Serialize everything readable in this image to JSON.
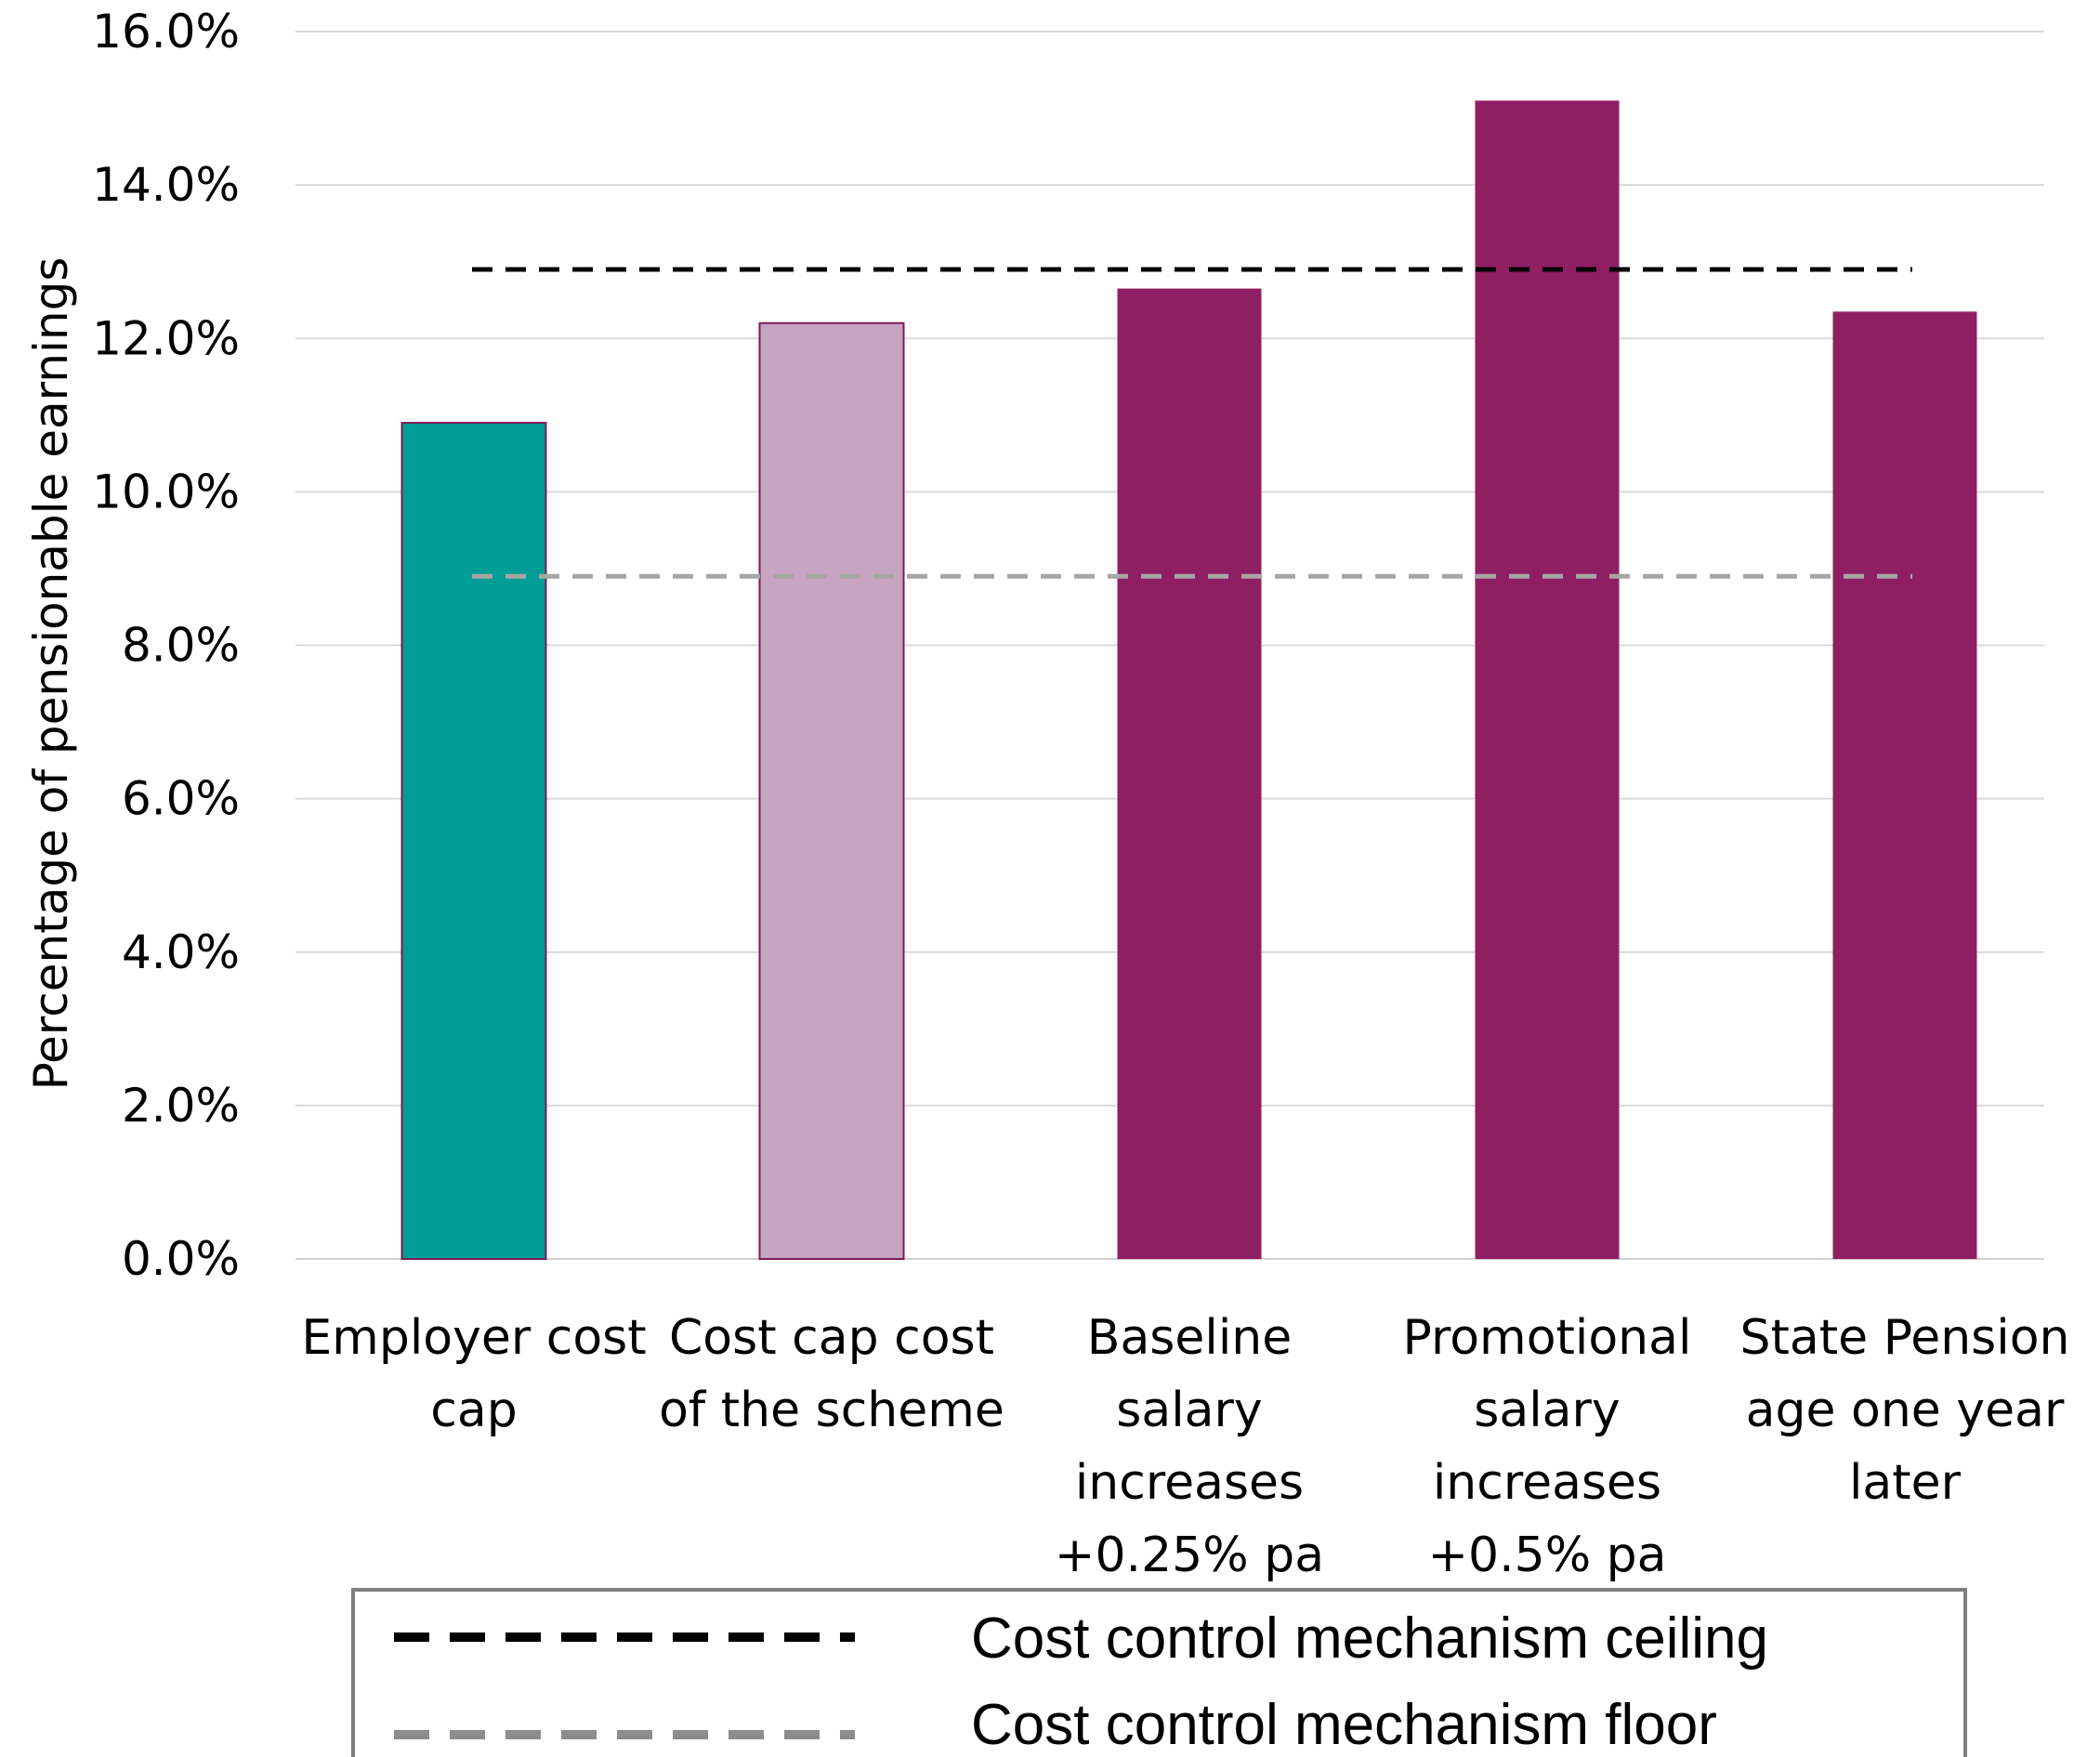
{
  "chart_data": {
    "type": "bar",
    "ylabel": "Percentage of pensionable earnings",
    "ylim": [
      0,
      16
    ],
    "yticks": [
      "0.0%",
      "2.0%",
      "4.0%",
      "6.0%",
      "8.0%",
      "10.0%",
      "12.0%",
      "14.0%",
      "16.0%"
    ],
    "grid": true,
    "categories": [
      [
        "Employer cost",
        "cap"
      ],
      [
        "Cost cap cost",
        "of the scheme"
      ],
      [
        "Baseline",
        "salary",
        "increases",
        "+0.25% pa"
      ],
      [
        "Promotional",
        "salary",
        "increases",
        "+0.5% pa"
      ],
      [
        "State Pension",
        "age one year",
        "later"
      ]
    ],
    "values": [
      10.9,
      12.2,
      12.65,
      15.1,
      12.35
    ],
    "bar_colors": [
      "#009e96",
      "#c7a4c2",
      "#901e62",
      "#901e62",
      "#901e62"
    ],
    "reference_lines": [
      {
        "name": "Cost control mechanism ceiling",
        "value": 12.9,
        "color": "#000000"
      },
      {
        "name": "Cost control mechanism floor",
        "value": 8.9,
        "color": "#a6a6a6"
      }
    ],
    "legend": {
      "placement": "bottom",
      "entries": [
        {
          "label": "Cost control mechanism ceiling",
          "color": "#000000"
        },
        {
          "label": "Cost control mechanism floor",
          "color": "#8c8c8c"
        }
      ]
    }
  }
}
